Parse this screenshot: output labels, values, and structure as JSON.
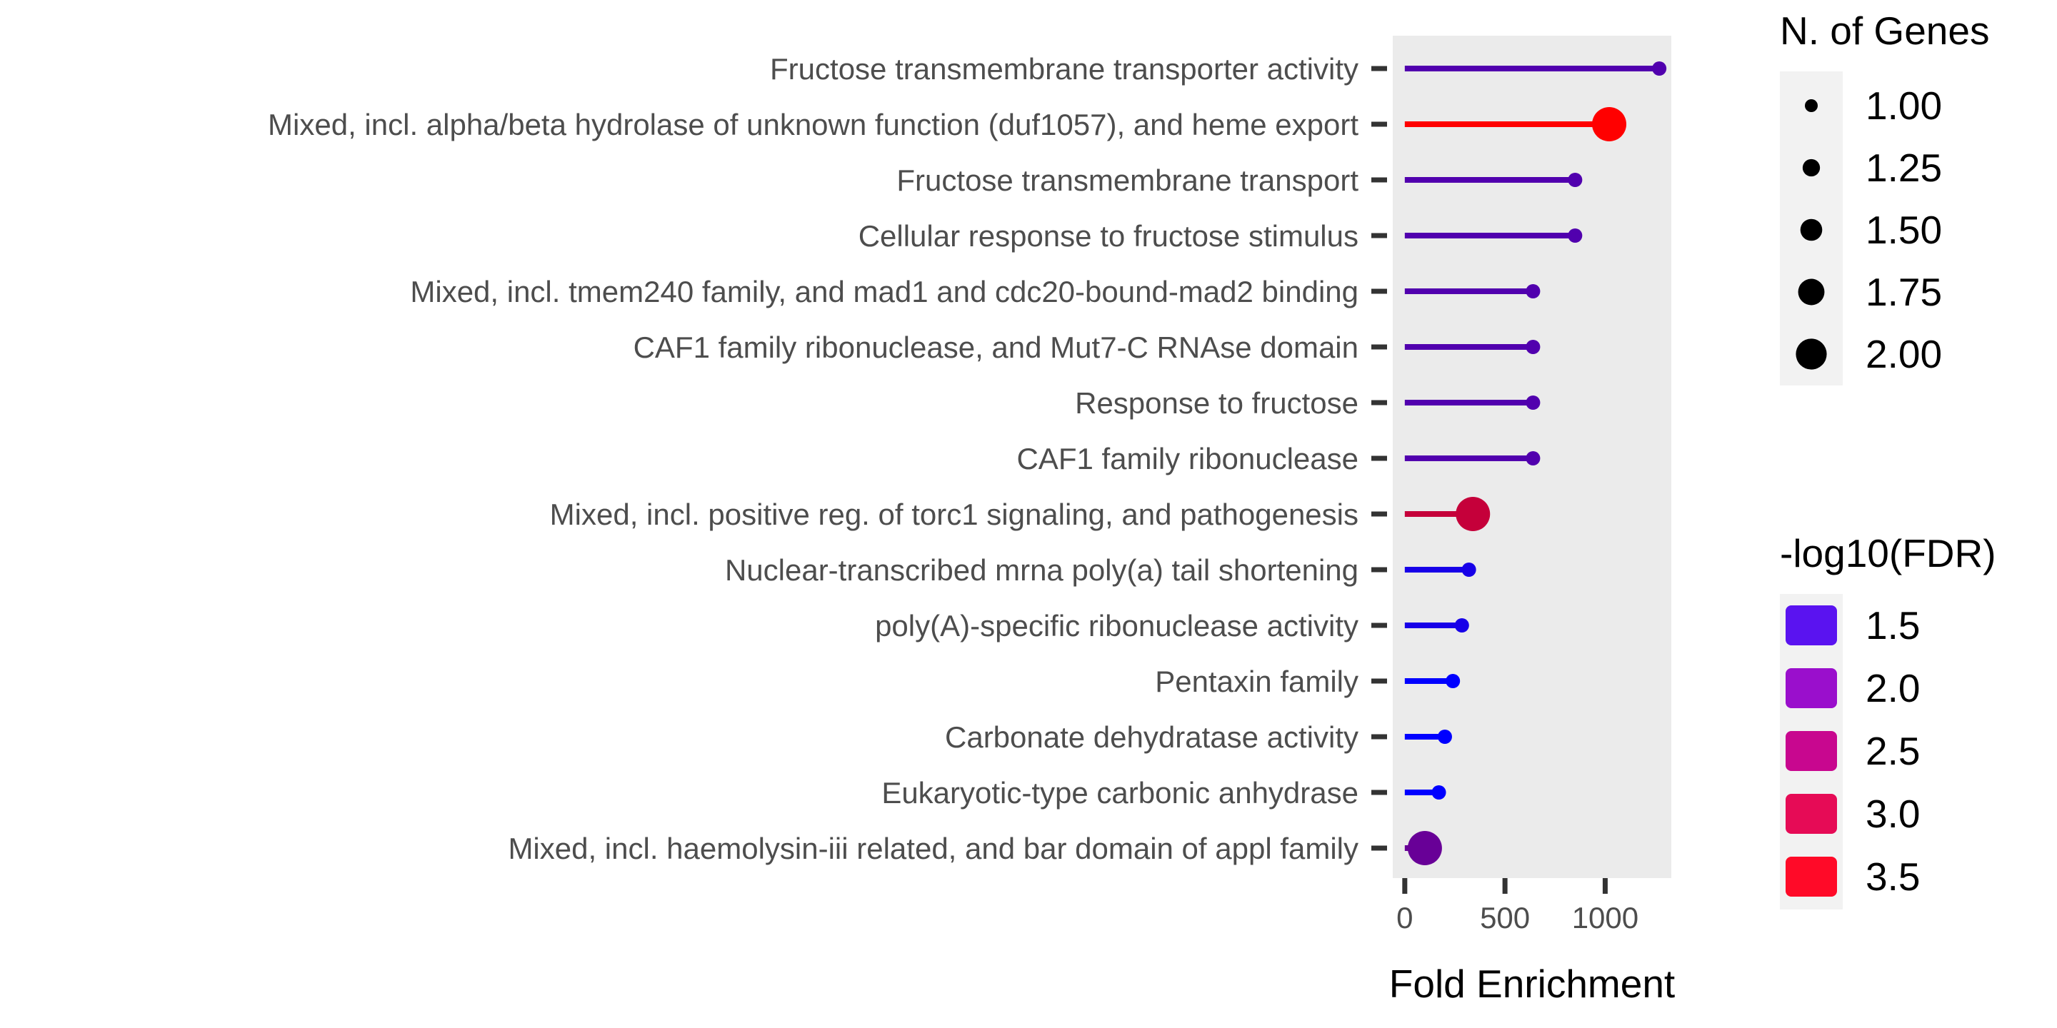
{
  "chart_data": {
    "type": "lollipop",
    "xlabel": "Fold Enrichment",
    "ylabel": "",
    "xlim": [
      -60,
      1330
    ],
    "xticks": [
      0,
      500,
      1000
    ],
    "grid": false,
    "categories": [
      "Fructose transmembrane transporter activity",
      "Mixed, incl. alpha/beta hydrolase of unknown function (duf1057), and heme export",
      "Fructose transmembrane transport",
      "Cellular response to fructose stimulus",
      "Mixed, incl. tmem240 family, and mad1 and cdc20-bound-mad2 binding",
      "CAF1 family ribonuclease, and Mut7-C RNAse domain",
      "Response to fructose",
      "CAF1 family ribonuclease",
      "Mixed, incl. positive reg. of torc1 signaling, and pathogenesis",
      "Nuclear-transcribed mrna poly(a) tail shortening",
      "poly(A)-specific ribonuclease activity",
      "Pentaxin family",
      "Carbonate dehydratase activity",
      "Eukaryotic-type carbonic anhydrase",
      "Mixed, incl. haemolysin-iii related, and bar domain of appl family"
    ],
    "values": [
      1270,
      1020,
      850,
      850,
      640,
      640,
      640,
      640,
      340,
      320,
      285,
      240,
      200,
      170,
      100
    ],
    "n_genes": [
      1,
      2,
      1,
      1,
      1,
      1,
      1,
      1,
      2,
      1,
      1,
      1,
      1,
      1,
      2
    ],
    "neg_log10_fdr": [
      2.0,
      3.5,
      2.0,
      2.0,
      2.0,
      2.0,
      2.0,
      2.0,
      3.0,
      1.5,
      1.5,
      1.3,
      1.3,
      1.3,
      2.2
    ],
    "size_legend": {
      "title": "N. of Genes",
      "labels": [
        "1.00",
        "1.25",
        "1.50",
        "1.75",
        "2.00"
      ],
      "values": [
        1.0,
        1.25,
        1.5,
        1.75,
        2.0
      ]
    },
    "color_legend": {
      "title": "-log10(FDR)",
      "labels": [
        "1.5",
        "2.0",
        "2.5",
        "3.0",
        "3.5"
      ],
      "values": [
        1.5,
        2.0,
        2.5,
        3.0,
        3.5
      ],
      "colors": [
        "#5a13f0",
        "#9a0fcc",
        "#c8078f",
        "#e60b56",
        "#ff0a28"
      ]
    },
    "color_scale": {
      "low_color": "#0000ff",
      "high_color": "#ff0000",
      "low_value": 1.3,
      "high_value": 3.5
    },
    "panel_background": "#ebebeb",
    "legend_background": "#f2f2f2"
  }
}
